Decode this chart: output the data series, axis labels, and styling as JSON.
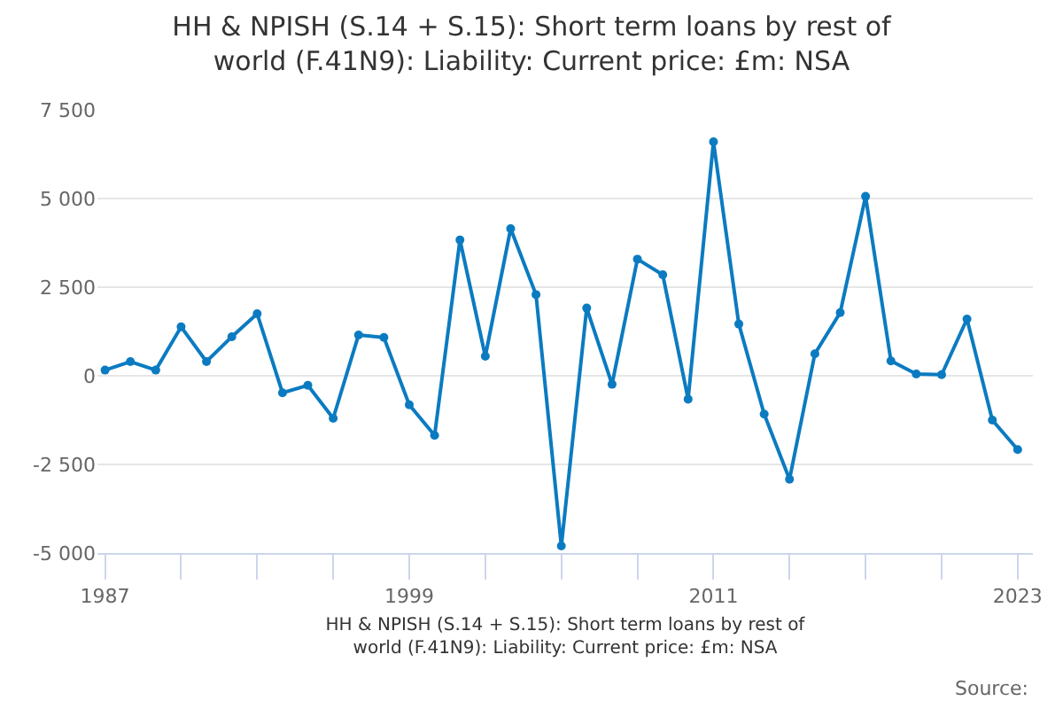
{
  "chart_data": {
    "type": "line",
    "title": "HH & NPISH (S.14 + S.15): Short term loans by rest of world (F.41N9): Liability: Current price: £m: NSA",
    "xlabel": "HH & NPISH (S.14 + S.15): Short term loans by rest of world (F.41N9): Liability: Current price: £m: NSA",
    "annotations": [
      "Source:"
    ],
    "x": [
      1987,
      1988,
      1989,
      1990,
      1991,
      1992,
      1993,
      1994,
      1995,
      1996,
      1997,
      1998,
      1999,
      2000,
      2001,
      2002,
      2003,
      2004,
      2005,
      2006,
      2007,
      2008,
      2009,
      2010,
      2011,
      2012,
      2013,
      2014,
      2015,
      2016,
      2017,
      2018,
      2019,
      2020,
      2021,
      2022,
      2023
    ],
    "series": [
      {
        "color": "#0b7bc1",
        "values": [
          160,
          400,
          160,
          1380,
          400,
          1100,
          1750,
          -480,
          -270,
          -1200,
          1150,
          1080,
          -820,
          -1680,
          3830,
          550,
          4150,
          2290,
          -4800,
          1910,
          -240,
          3290,
          2850,
          -660,
          6600,
          1460,
          -1080,
          -2920,
          620,
          1780,
          5060,
          420,
          50,
          30,
          1600,
          -1250,
          -2080
        ]
      }
    ],
    "xlim": [
      1986.7,
      2023.6
    ],
    "xticks": [
      {
        "value": 1987,
        "label": "1987"
      },
      {
        "value": 1990,
        "label": null
      },
      {
        "value": 1993,
        "label": null
      },
      {
        "value": 1996,
        "label": null
      },
      {
        "value": 1999,
        "label": "1999"
      },
      {
        "value": 2002,
        "label": null
      },
      {
        "value": 2005,
        "label": null
      },
      {
        "value": 2008,
        "label": null
      },
      {
        "value": 2011,
        "label": "2011"
      },
      {
        "value": 2014,
        "label": null
      },
      {
        "value": 2017,
        "label": null
      },
      {
        "value": 2020,
        "label": null
      },
      {
        "value": 2023,
        "label": "2023"
      }
    ],
    "ylim": [
      -5000,
      7500
    ],
    "yticks": [
      {
        "value": -5000,
        "label": "-5 000"
      },
      {
        "value": -2500,
        "label": "-2 500"
      },
      {
        "value": 0,
        "label": "0"
      },
      {
        "value": 2500,
        "label": "2 500"
      },
      {
        "value": 5000,
        "label": "5 000"
      },
      {
        "value": 7500,
        "label": "7 500"
      }
    ],
    "grid": "y",
    "marker": "circle",
    "line_style": "solid"
  }
}
